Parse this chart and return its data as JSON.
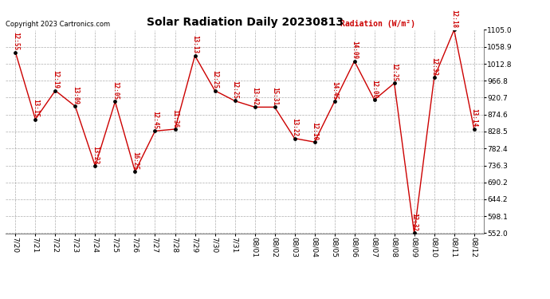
{
  "title": "Solar Radiation Daily 20230813",
  "copyright": "Copyright 2023 Cartronics.com",
  "legend_label": "Radiation (W/m²)",
  "dates": [
    "7/20",
    "7/21",
    "7/22",
    "7/23",
    "7/24",
    "7/25",
    "7/26",
    "7/27",
    "7/28",
    "7/29",
    "7/30",
    "7/31",
    "08/01",
    "08/02",
    "08/03",
    "08/04",
    "08/05",
    "08/06",
    "08/07",
    "08/08",
    "08/09",
    "08/10",
    "08/11",
    "08/12"
  ],
  "values": [
    1044,
    862,
    940,
    897,
    735,
    910,
    720,
    830,
    835,
    1035,
    940,
    912,
    895,
    895,
    810,
    800,
    910,
    1020,
    915,
    960,
    552,
    975,
    1105,
    836
  ],
  "time_labels": [
    "12:55",
    "13:15",
    "12:19",
    "13:09",
    "13:23",
    "12:05",
    "16:25",
    "12:45",
    "11:36",
    "13:13",
    "12:25",
    "12:25",
    "13:42",
    "15:31",
    "13:22",
    "12:10",
    "14:45",
    "14:09",
    "12:00",
    "12:25",
    "12:32",
    "12:32",
    "12:18",
    "13:14"
  ],
  "line_color": "#cc0000",
  "marker_color": "#000000",
  "label_color": "#cc0000",
  "grid_color": "#999999",
  "background_color": "#ffffff",
  "ymin": 552.0,
  "ymax": 1105.0,
  "yticks": [
    552.0,
    598.1,
    644.2,
    690.2,
    736.3,
    782.4,
    828.5,
    874.6,
    920.7,
    966.8,
    1012.8,
    1058.9,
    1105.0
  ],
  "title_fontsize": 10,
  "label_fontsize": 5.5,
  "tick_fontsize": 6.5,
  "copyright_fontsize": 6,
  "legend_fontsize": 7
}
